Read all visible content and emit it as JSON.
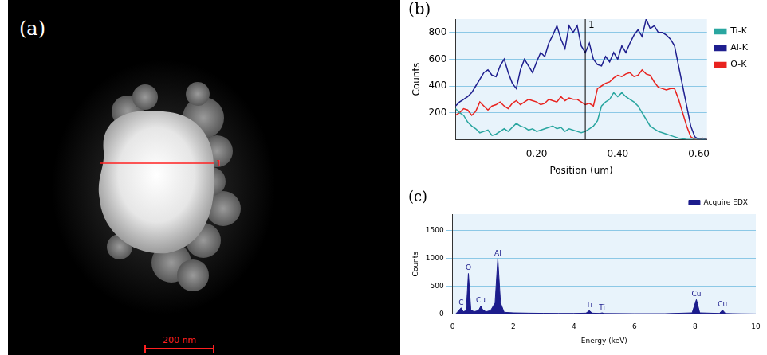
{
  "image_panel": {
    "panel": "(a)",
    "line_label": "1",
    "scale_bar": "200 nm"
  },
  "chart_data": [
    {
      "panel": "(b)",
      "type": "line",
      "x_label": "Position (um)",
      "y_label": "Counts",
      "x": [
        0,
        0.01,
        0.02,
        0.03,
        0.04,
        0.05,
        0.06,
        0.07,
        0.08,
        0.09,
        0.1,
        0.11,
        0.12,
        0.13,
        0.14,
        0.15,
        0.16,
        0.17,
        0.18,
        0.19,
        0.2,
        0.21,
        0.22,
        0.23,
        0.24,
        0.25,
        0.26,
        0.27,
        0.28,
        0.29,
        0.3,
        0.31,
        0.32,
        0.33,
        0.34,
        0.35,
        0.36,
        0.37,
        0.38,
        0.39,
        0.4,
        0.41,
        0.42,
        0.43,
        0.44,
        0.45,
        0.46,
        0.47,
        0.48,
        0.49,
        0.5,
        0.51,
        0.52,
        0.53,
        0.54,
        0.55,
        0.56,
        0.57,
        0.58,
        0.59,
        0.6,
        0.61,
        0.62
      ],
      "xlim": [
        0,
        0.62
      ],
      "xticks": [
        {
          "value": 0.2,
          "label": "0.20"
        },
        {
          "value": 0.4,
          "label": "0.40"
        },
        {
          "value": 0.6,
          "label": "0.60"
        }
      ],
      "ylim": [
        0,
        900
      ],
      "yticks": [
        200,
        400,
        600,
        800
      ],
      "grid": true,
      "legend": "right",
      "series": [
        {
          "name": "Ti-K",
          "color": "#2aa6a0",
          "values": [
            230,
            200,
            180,
            130,
            100,
            80,
            50,
            60,
            70,
            30,
            40,
            60,
            80,
            60,
            90,
            120,
            100,
            90,
            70,
            80,
            60,
            70,
            80,
            90,
            100,
            80,
            90,
            60,
            80,
            70,
            60,
            50,
            60,
            80,
            100,
            140,
            250,
            280,
            300,
            350,
            320,
            350,
            320,
            300,
            280,
            250,
            200,
            150,
            100,
            80,
            60,
            50,
            40,
            30,
            20,
            10,
            5,
            0,
            0,
            0,
            0,
            0,
            0
          ]
        },
        {
          "name": "Al-K",
          "color": "#1f1f8f",
          "values": [
            250,
            280,
            300,
            320,
            350,
            400,
            450,
            500,
            520,
            480,
            470,
            550,
            600,
            500,
            420,
            380,
            520,
            600,
            550,
            500,
            580,
            650,
            620,
            720,
            780,
            850,
            750,
            680,
            850,
            800,
            850,
            700,
            650,
            720,
            600,
            560,
            550,
            620,
            580,
            650,
            600,
            700,
            650,
            720,
            780,
            820,
            770,
            900,
            830,
            850,
            800,
            800,
            780,
            750,
            700,
            550,
            400,
            250,
            100,
            20,
            0,
            0,
            0
          ]
        },
        {
          "name": "O-K",
          "color": "#e8231f",
          "values": [
            180,
            200,
            230,
            220,
            180,
            210,
            280,
            250,
            220,
            250,
            260,
            280,
            250,
            230,
            270,
            290,
            260,
            280,
            300,
            290,
            280,
            260,
            270,
            300,
            290,
            280,
            320,
            290,
            310,
            300,
            300,
            280,
            260,
            270,
            250,
            380,
            400,
            420,
            430,
            460,
            480,
            470,
            490,
            500,
            470,
            480,
            520,
            490,
            480,
            430,
            390,
            380,
            370,
            380,
            380,
            300,
            200,
            100,
            20,
            0,
            0,
            10,
            0
          ]
        }
      ],
      "annotations": [
        {
          "x": 0.32,
          "label": "1"
        }
      ]
    },
    {
      "panel": "(c)",
      "type": "area",
      "x_label": "Energy (keV)",
      "y_label": "Counts",
      "x": [
        0.1,
        0.2,
        0.28,
        0.35,
        0.45,
        0.52,
        0.6,
        0.7,
        0.85,
        0.93,
        1.0,
        1.1,
        1.25,
        1.4,
        1.49,
        1.58,
        1.7,
        2.0,
        2.5,
        3.0,
        3.5,
        4.0,
        4.4,
        4.51,
        4.6,
        4.85,
        4.93,
        5.0,
        6.0,
        7.0,
        7.9,
        8.04,
        8.15,
        8.8,
        8.9,
        9.0,
        9.5,
        10.0
      ],
      "xlim": [
        0,
        10
      ],
      "xticks": [
        0,
        2,
        4,
        6,
        8,
        10
      ],
      "ylim": [
        0,
        1800
      ],
      "yticks": [
        0,
        500,
        1000,
        1500
      ],
      "grid": true,
      "legend": "top right",
      "series": [
        {
          "name": "Acquire EDX",
          "color": "#1c1c8c",
          "values": [
            0,
            60,
            110,
            40,
            60,
            730,
            80,
            40,
            60,
            140,
            70,
            40,
            60,
            200,
            1000,
            200,
            30,
            20,
            15,
            12,
            10,
            10,
            15,
            60,
            15,
            10,
            20,
            8,
            5,
            5,
            20,
            260,
            20,
            10,
            70,
            8,
            3,
            0
          ]
        }
      ],
      "peak_labels": [
        {
          "x": 0.28,
          "label": "C"
        },
        {
          "x": 0.52,
          "label": "O"
        },
        {
          "x": 0.93,
          "label": "Cu"
        },
        {
          "x": 1.49,
          "label": "Al"
        },
        {
          "x": 4.51,
          "label": "Ti"
        },
        {
          "x": 4.93,
          "label": "Ti"
        },
        {
          "x": 8.04,
          "label": "Cu"
        },
        {
          "x": 8.9,
          "label": "Cu"
        }
      ]
    }
  ]
}
